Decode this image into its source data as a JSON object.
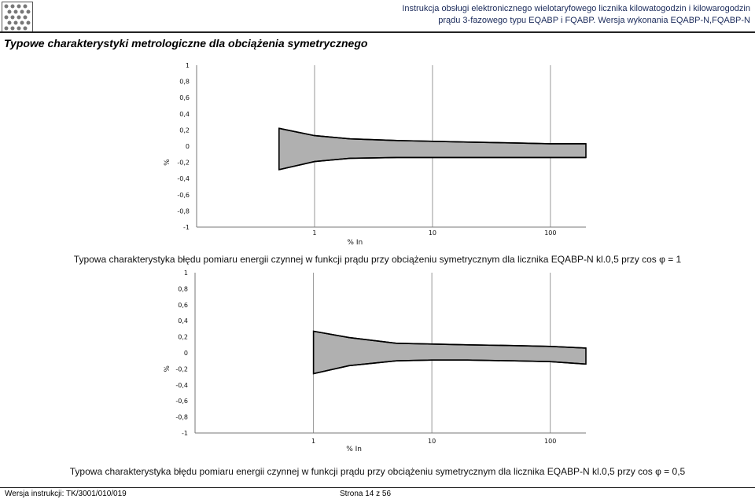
{
  "header": {
    "line1": "Instrukcja obsługi elektronicznego wielotaryfowego licznika kilowatogodzin i kilowarogodzin",
    "line2": "prądu 3-fazowego typu EQABP i FQABP. Wersja wykonania EQABP-N,FQABP-N"
  },
  "section_title": "Typowe charakterystyki metrologiczne dla obciążenia symetrycznego",
  "charts": [
    {
      "caption": "Typowa charakterystyka błędu pomiaru energii czynnej w funkcji prądu przy obciążeniu symetrycznym dla licznika EQABP-N kl.0,5 przy cos φ = 1",
      "ylabel": "%",
      "xlabel": "% In",
      "yticks": [
        "1",
        "0,8",
        "0,6",
        "0,4",
        "0,2",
        "0",
        "-0,2",
        "-0,4",
        "-0,6",
        "-0,8",
        "-1"
      ],
      "xticks": [
        "1",
        "10",
        "100"
      ]
    },
    {
      "caption": "Typowa charakterystyka błędu pomiaru energii czynnej w funkcji prądu przy obciążeniu symetrycznym dla licznika EQABP-N kl.0,5 przy cos φ = 0,5",
      "ylabel": "%",
      "xlabel": "% In",
      "yticks": [
        "1",
        "0,8",
        "0,6",
        "0,4",
        "0,2",
        "0",
        "-0,2",
        "-0,4",
        "-0,6",
        "-0,8",
        "-1"
      ],
      "xticks": [
        "1",
        "10",
        "100"
      ]
    }
  ],
  "chart_data": [
    {
      "type": "area",
      "title": "Typowa charakterystyka błędu pomiaru energii czynnej w funkcji prądu przy obciążeniu symetrycznym dla licznika EQABP-N kl.0,5 przy cos φ = 1",
      "xlabel": "% In",
      "ylabel": "%",
      "x_scale": "log",
      "xlim": [
        0.1,
        200
      ],
      "ylim": [
        -1,
        1
      ],
      "grid": "vertical",
      "x": [
        0.5,
        1,
        2,
        5,
        10,
        20,
        50,
        100,
        200
      ],
      "upper": [
        0.22,
        0.13,
        0.09,
        0.07,
        0.06,
        0.05,
        0.04,
        0.03,
        0.03
      ],
      "lower": [
        -0.29,
        -0.19,
        -0.15,
        -0.14,
        -0.14,
        -0.14,
        -0.14,
        -0.14,
        -0.14
      ],
      "fill_color": "#b0b0b0"
    },
    {
      "type": "area",
      "title": "Typowa charakterystyka błędu pomiaru energii czynnej w funkcji prądu przy obciążeniu symetrycznym dla licznika EQABP-N kl.0,5 przy cos φ = 0,5",
      "xlabel": "% In",
      "ylabel": "%",
      "x_scale": "log",
      "xlim": [
        0.1,
        200
      ],
      "ylim": [
        -1,
        1
      ],
      "grid": "vertical",
      "x": [
        1,
        2,
        5,
        10,
        20,
        50,
        100,
        200
      ],
      "upper": [
        0.27,
        0.19,
        0.12,
        0.11,
        0.1,
        0.09,
        0.08,
        0.06
      ],
      "lower": [
        -0.26,
        -0.16,
        -0.1,
        -0.09,
        -0.09,
        -0.1,
        -0.11,
        -0.14
      ],
      "fill_color": "#b0b0b0"
    }
  ],
  "footer": {
    "version": "Wersja instrukcji: TK/3001/010/019",
    "page": "Strona 14 z 56"
  }
}
